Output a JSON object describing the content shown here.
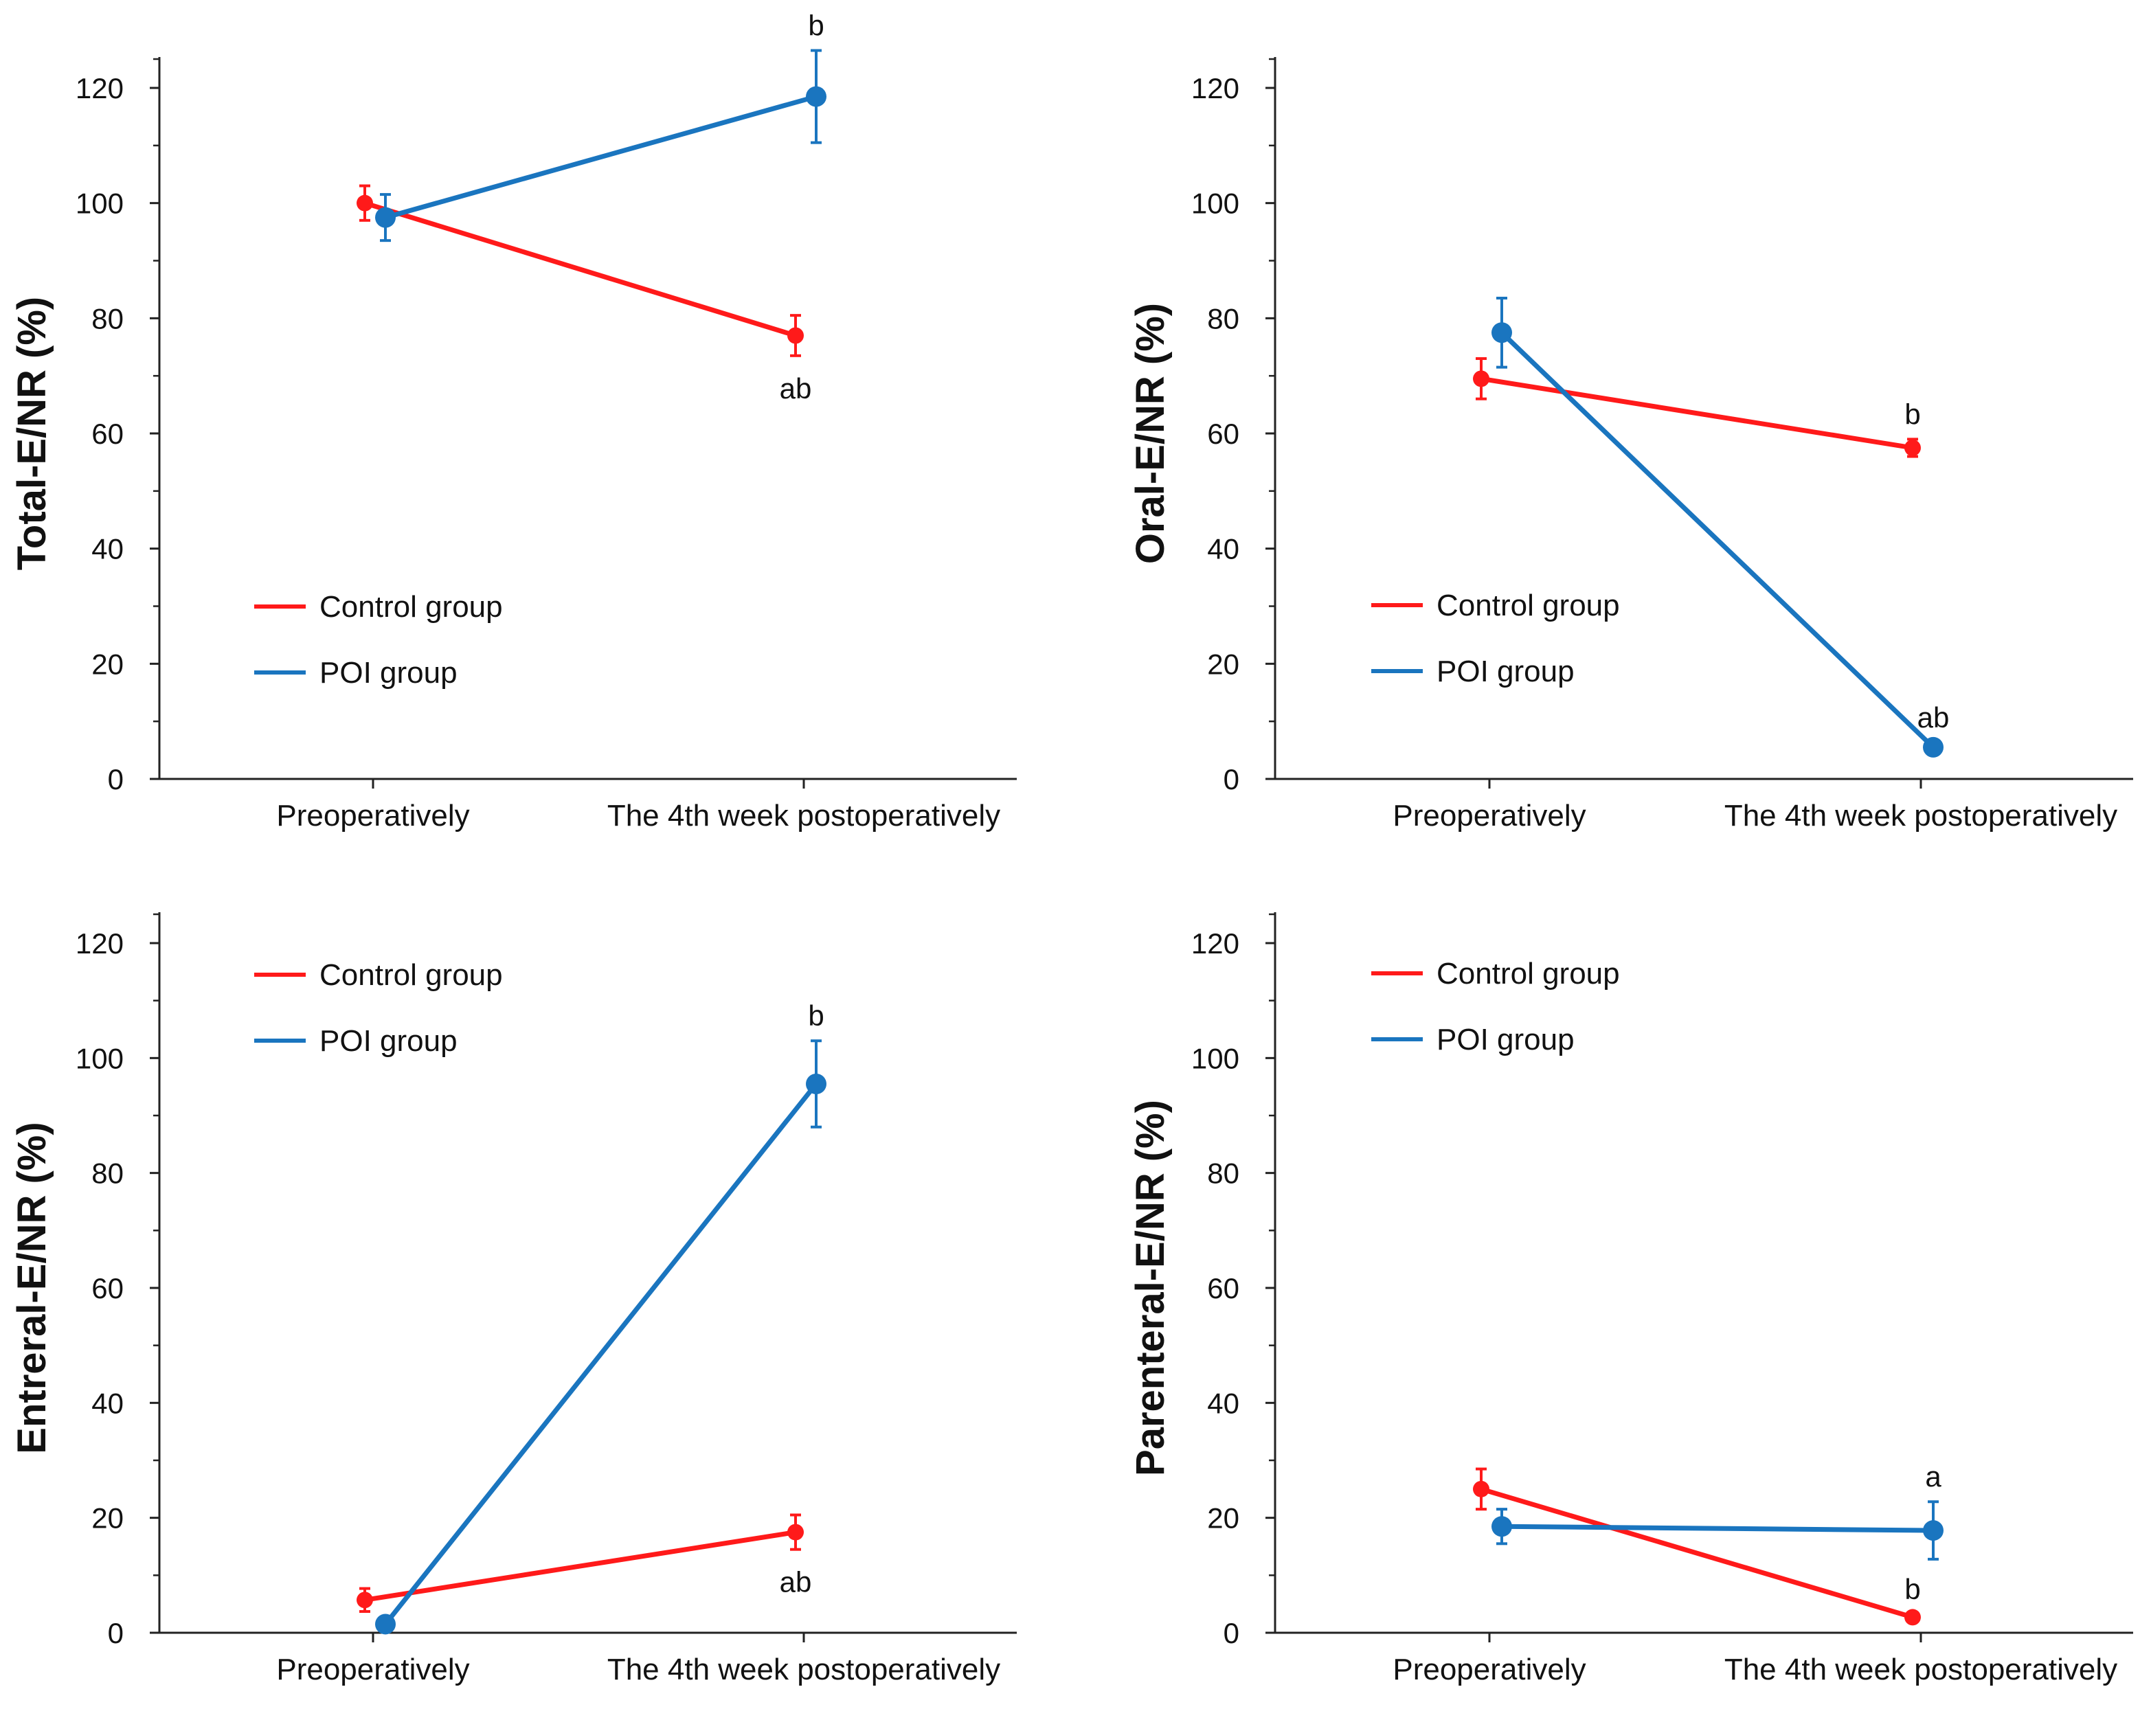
{
  "chart_data": [
    {
      "type": "line",
      "title": "",
      "xlabel": "",
      "ylabel": "Total-E/NR (%)",
      "ylim": [
        0,
        120
      ],
      "yticks": [
        0,
        20,
        40,
        60,
        80,
        100,
        120
      ],
      "categories": [
        "Preoperatively",
        "The 4th week postoperatively"
      ],
      "legend_position": "middle-left",
      "series": [
        {
          "name": "Control group",
          "color": "#ff1a1a",
          "values": [
            100,
            77
          ],
          "errors": [
            3,
            3.5
          ],
          "labels": [
            "",
            "ab"
          ],
          "label_pos": [
            "",
            "below"
          ]
        },
        {
          "name": "POI group",
          "color": "#1a75bf",
          "values": [
            97.5,
            118.5
          ],
          "errors": [
            4,
            8
          ],
          "labels": [
            "",
            "b"
          ],
          "label_pos": [
            "",
            "above"
          ]
        }
      ]
    },
    {
      "type": "line",
      "title": "",
      "xlabel": "",
      "ylabel": "Oral-E/NR (%)",
      "ylim": [
        0,
        120
      ],
      "yticks": [
        0,
        20,
        40,
        60,
        80,
        100,
        120
      ],
      "categories": [
        "Preoperatively",
        "The 4th week postoperatively"
      ],
      "legend_position": "middle-left",
      "series": [
        {
          "name": "Control group",
          "color": "#ff1a1a",
          "values": [
            69.5,
            57.5
          ],
          "errors": [
            3.5,
            1.5
          ],
          "labels": [
            "",
            "b"
          ],
          "label_pos": [
            "",
            "above"
          ]
        },
        {
          "name": "POI group",
          "color": "#1a75bf",
          "values": [
            77.5,
            5.5
          ],
          "errors": [
            6,
            0.8
          ],
          "labels": [
            "",
            "ab"
          ],
          "label_pos": [
            "",
            "above"
          ]
        }
      ]
    },
    {
      "type": "line",
      "title": "",
      "xlabel": "",
      "ylabel": "Entreral-E/NR (%)",
      "ylim": [
        0,
        120
      ],
      "yticks": [
        0,
        20,
        40,
        60,
        80,
        100,
        120
      ],
      "categories": [
        "Preoperatively",
        "The 4th week postoperatively"
      ],
      "legend_position": "top-left",
      "series": [
        {
          "name": "Control group",
          "color": "#ff1a1a",
          "values": [
            5.7,
            17.5
          ],
          "errors": [
            2,
            3
          ],
          "labels": [
            "",
            "ab"
          ],
          "label_pos": [
            "",
            "below"
          ]
        },
        {
          "name": "POI group",
          "color": "#1a75bf",
          "values": [
            1.5,
            95.5
          ],
          "errors": [
            0.8,
            7.5
          ],
          "labels": [
            "",
            "b"
          ],
          "label_pos": [
            "",
            "above"
          ]
        }
      ]
    },
    {
      "type": "line",
      "title": "",
      "xlabel": "",
      "ylabel": "Parenteral-E/NR (%)",
      "ylim": [
        0,
        120
      ],
      "yticks": [
        0,
        20,
        40,
        60,
        80,
        100,
        120
      ],
      "categories": [
        "Preoperatively",
        "The 4th week postoperatively"
      ],
      "legend_position": "top-left",
      "series": [
        {
          "name": "Control group",
          "color": "#ff1a1a",
          "values": [
            25,
            2.7
          ],
          "errors": [
            3.5,
            0.5
          ],
          "labels": [
            "",
            "b"
          ],
          "label_pos": [
            "",
            "above"
          ]
        },
        {
          "name": "POI group",
          "color": "#1a75bf",
          "values": [
            18.5,
            17.8
          ],
          "errors": [
            3,
            5
          ],
          "labels": [
            "",
            "a"
          ],
          "label_pos": [
            "",
            "above"
          ]
        }
      ]
    }
  ]
}
